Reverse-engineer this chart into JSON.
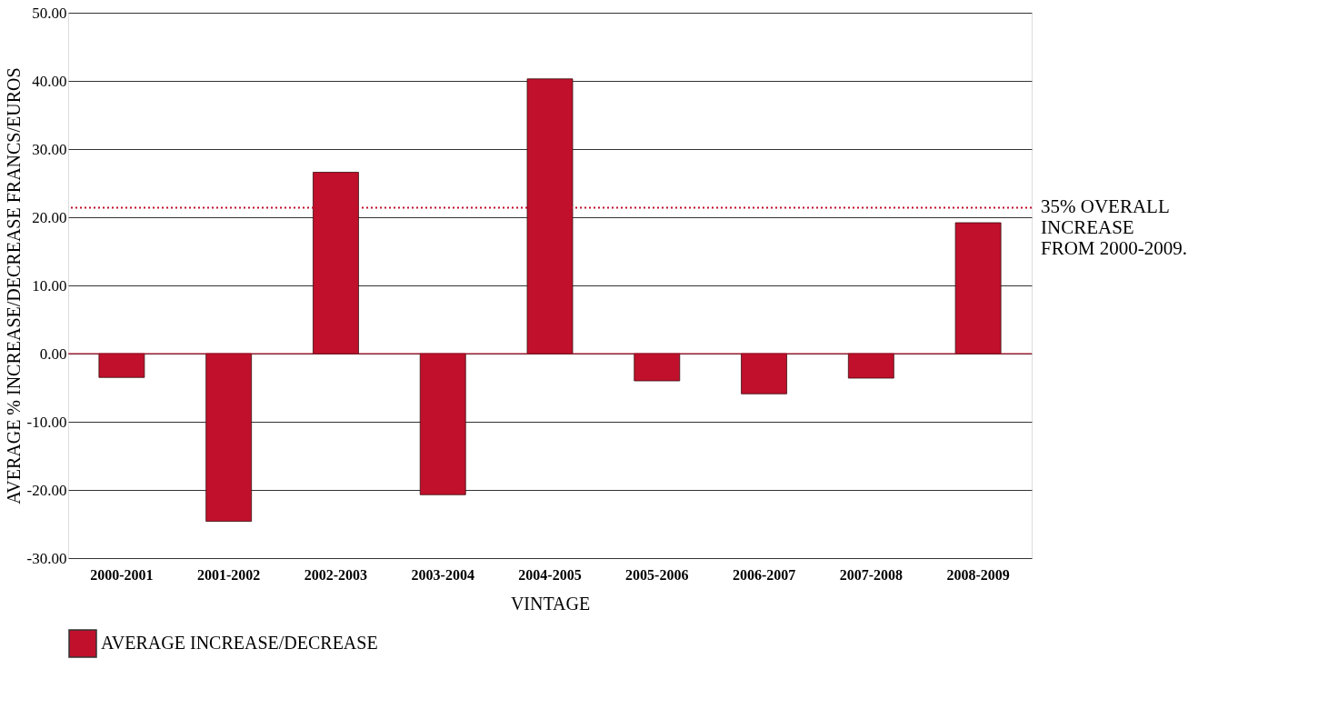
{
  "chart_data": {
    "type": "bar",
    "xlabel": "VINTAGE",
    "ylabel": "AVERAGE % INCREASE/DECREASE FRANCS/EUROS",
    "categories": [
      "2000-2001",
      "2001-2002",
      "2002-2003",
      "2003-2004",
      "2004-2005",
      "2005-2006",
      "2006-2007",
      "2007-2008",
      "2008-2009"
    ],
    "series": [
      {
        "name": "AVERAGE INCREASE/DECREASE",
        "color": "#c0102c",
        "values": [
          -3.5,
          -24.6,
          26.6,
          -20.7,
          40.3,
          -4.0,
          -5.9,
          -3.6,
          19.2
        ]
      }
    ],
    "ylim": [
      -30,
      50
    ],
    "yticks": [
      {
        "value": -30,
        "label": "-30.00"
      },
      {
        "value": -20,
        "label": "-20.00"
      },
      {
        "value": -10,
        "label": "-10.00"
      },
      {
        "value": 0,
        "label": "0.00"
      },
      {
        "value": 10,
        "label": "10.00"
      },
      {
        "value": 20,
        "label": "20.00"
      },
      {
        "value": 30,
        "label": "30.00"
      },
      {
        "value": 40,
        "label": "40.00"
      },
      {
        "value": 50,
        "label": "50.00"
      }
    ],
    "ref_lines": [
      {
        "axis": "y",
        "value": 0,
        "color": "#c0102c",
        "line_style": "solid"
      },
      {
        "axis": "y",
        "value": 21.4,
        "label": "35% OVERALL\nINCREASE\nFROM 2000-2009.",
        "color": "#c0102c",
        "line_style": "dotted"
      }
    ],
    "grid": "y",
    "legend": "bottom"
  }
}
